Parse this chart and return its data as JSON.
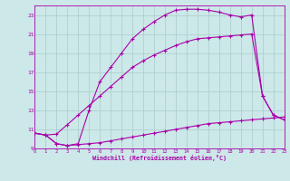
{
  "background_color": "#cce8e8",
  "grid_color": "#aacccc",
  "line_color": "#aa00aa",
  "curve1_x": [
    0,
    1,
    2,
    3,
    4,
    5,
    6,
    7,
    8,
    9,
    10,
    11,
    12,
    13,
    14,
    15,
    16,
    17,
    18,
    19,
    20,
    21,
    22,
    23
  ],
  "curve1_y": [
    10.6,
    10.4,
    9.5,
    9.3,
    9.4,
    9.5,
    9.6,
    9.8,
    10.0,
    10.2,
    10.4,
    10.6,
    10.8,
    11.0,
    11.2,
    11.4,
    11.6,
    11.7,
    11.8,
    11.9,
    12.0,
    12.1,
    12.2,
    12.3
  ],
  "curve2_x": [
    0,
    1,
    2,
    3,
    4,
    5,
    6,
    7,
    8,
    9,
    10,
    11,
    12,
    13,
    14,
    15,
    16,
    17,
    18,
    19,
    20,
    21,
    22,
    23
  ],
  "curve2_y": [
    10.6,
    10.4,
    10.5,
    11.5,
    12.5,
    13.5,
    14.5,
    15.5,
    16.5,
    17.5,
    18.2,
    18.8,
    19.3,
    19.8,
    20.2,
    20.5,
    20.6,
    20.7,
    20.8,
    20.9,
    21.0,
    14.5,
    12.5,
    12.0
  ],
  "curve3_x": [
    0,
    1,
    2,
    3,
    4,
    5,
    6,
    7,
    8,
    9,
    10,
    11,
    12,
    13,
    14,
    15,
    16,
    17,
    18,
    19,
    20,
    21,
    22,
    23
  ],
  "curve3_y": [
    10.6,
    10.4,
    9.5,
    9.3,
    9.5,
    13.0,
    16.0,
    17.5,
    19.0,
    20.5,
    21.5,
    22.3,
    23.0,
    23.5,
    23.6,
    23.6,
    23.5,
    23.3,
    23.0,
    22.8,
    23.0,
    14.5,
    12.5,
    12.0
  ],
  "xlabel": "Windchill (Refroidissement éolien,°C)",
  "xlim": [
    0,
    23
  ],
  "ylim": [
    9,
    24
  ],
  "yticks": [
    9,
    11,
    13,
    15,
    17,
    19,
    21,
    23
  ],
  "xticks": [
    0,
    1,
    2,
    3,
    4,
    5,
    6,
    7,
    8,
    9,
    10,
    11,
    12,
    13,
    14,
    15,
    16,
    17,
    18,
    19,
    20,
    21,
    22,
    23
  ]
}
